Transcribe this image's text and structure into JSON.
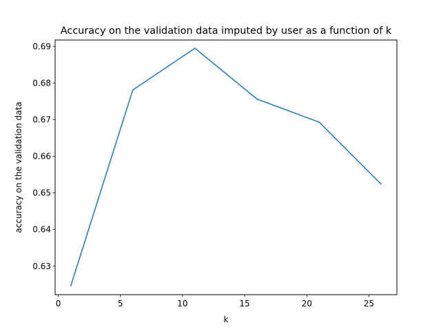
{
  "chart_data": {
    "type": "line",
    "title": "Accuracy on the validation data imputed by user as a function of k",
    "xlabel": "k",
    "ylabel": "accuracy on the validation data",
    "xlim": [
      -0.25,
      27.25
    ],
    "ylim": [
      0.62219,
      0.69174
    ],
    "xticks": [
      0,
      5,
      10,
      15,
      20,
      25
    ],
    "xtick_labels": [
      "0",
      "5",
      "10",
      "15",
      "20",
      "25"
    ],
    "yticks": [
      0.63,
      0.64,
      0.65,
      0.66,
      0.67,
      0.68,
      0.69
    ],
    "ytick_labels": [
      "0.63",
      "0.64",
      "0.65",
      "0.66",
      "0.67",
      "0.68",
      "0.69"
    ],
    "grid": false,
    "legend": "none",
    "series": [
      {
        "color": "#1f77b4",
        "x": [
          1,
          6,
          11,
          16,
          21,
          26
        ],
        "y": [
          0.6245,
          0.6781,
          0.6895,
          0.6756,
          0.6693,
          0.6523
        ]
      }
    ]
  }
}
